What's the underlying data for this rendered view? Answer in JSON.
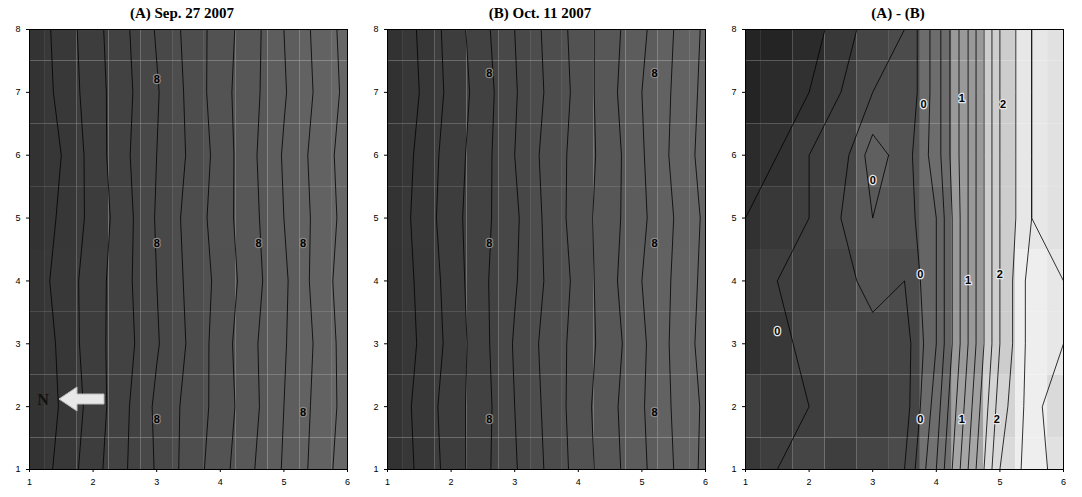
{
  "chart_data": [
    {
      "type": "contour",
      "title": "(A) Sep. 27 2007",
      "x": [
        1,
        1.5,
        2,
        2.5,
        3,
        3.5,
        4,
        4.5,
        5,
        5.5,
        6
      ],
      "y": [
        1,
        2,
        3,
        4,
        5,
        6,
        7,
        8
      ],
      "z": [
        [
          7.42,
          7.53,
          7.66,
          7.79,
          7.91,
          8.04,
          8.16,
          8.29,
          8.41,
          8.53,
          8.66
        ],
        [
          7.4,
          7.51,
          7.64,
          7.78,
          7.92,
          8.03,
          8.14,
          8.27,
          8.4,
          8.52,
          8.64
        ],
        [
          7.41,
          7.52,
          7.66,
          7.76,
          7.89,
          8.01,
          8.15,
          8.28,
          8.39,
          8.51,
          8.65
        ],
        [
          7.43,
          7.54,
          7.65,
          7.77,
          7.9,
          8.02,
          8.13,
          8.26,
          8.38,
          8.53,
          8.66
        ],
        [
          7.4,
          7.52,
          7.63,
          7.76,
          7.91,
          8.03,
          8.15,
          8.27,
          8.4,
          8.52,
          8.64
        ],
        [
          7.39,
          7.5,
          7.64,
          7.78,
          7.9,
          8.01,
          8.14,
          8.28,
          8.41,
          8.53,
          8.65
        ],
        [
          7.41,
          7.53,
          7.65,
          7.77,
          7.89,
          8.02,
          8.16,
          8.27,
          8.39,
          8.51,
          8.63
        ],
        [
          7.42,
          7.54,
          7.66,
          7.78,
          7.91,
          8.03,
          8.15,
          8.26,
          8.4,
          8.52,
          8.64
        ]
      ],
      "levels": [
        7.5,
        7.6,
        7.7,
        7.8,
        7.9,
        8.0,
        8.1,
        8.2,
        8.3,
        8.4,
        8.5,
        8.6
      ],
      "zlim": [
        7.3,
        8.8
      ],
      "xlim": [
        1,
        6
      ],
      "ylim": [
        1,
        8
      ],
      "xticks": [
        1,
        2,
        3,
        4,
        5,
        6
      ],
      "yticks": [
        1,
        2,
        3,
        4,
        5,
        6,
        7,
        8
      ],
      "contour_labels": [
        {
          "x": 3.0,
          "y": 7.2,
          "value": 8
        },
        {
          "x": 3.0,
          "y": 4.6,
          "value": 8
        },
        {
          "x": 4.6,
          "y": 4.6,
          "value": 8
        },
        {
          "x": 5.3,
          "y": 4.6,
          "value": 8
        },
        {
          "x": 3.0,
          "y": 1.8,
          "value": 8
        },
        {
          "x": 5.3,
          "y": 1.9,
          "value": 8
        }
      ],
      "annotations": [
        {
          "text": "N"
        }
      ]
    },
    {
      "type": "contour",
      "title": "(B) Oct. 11 2007",
      "x": [
        1,
        1.5,
        2,
        2.5,
        3,
        3.5,
        4,
        4.5,
        5,
        5.5,
        6
      ],
      "y": [
        1,
        2,
        3,
        4,
        5,
        6,
        7,
        8
      ],
      "z": [
        [
          7.4,
          7.52,
          7.64,
          7.77,
          7.89,
          8.01,
          8.14,
          8.26,
          8.38,
          8.5,
          8.63
        ],
        [
          7.41,
          7.53,
          7.65,
          7.76,
          7.9,
          8.02,
          8.15,
          8.27,
          8.39,
          8.51,
          8.62
        ],
        [
          7.39,
          7.51,
          7.63,
          7.77,
          7.91,
          8.03,
          8.14,
          8.25,
          8.38,
          8.52,
          8.64
        ],
        [
          7.4,
          7.52,
          7.64,
          7.78,
          7.89,
          8.01,
          8.13,
          8.27,
          8.4,
          8.51,
          8.63
        ],
        [
          7.42,
          7.53,
          7.66,
          7.77,
          7.88,
          8.02,
          8.15,
          8.26,
          8.38,
          8.5,
          8.62
        ],
        [
          7.41,
          7.52,
          7.65,
          7.76,
          7.9,
          8.03,
          8.14,
          8.25,
          8.39,
          8.52,
          8.64
        ],
        [
          7.38,
          7.5,
          7.63,
          7.75,
          7.89,
          8.01,
          8.13,
          8.27,
          8.4,
          8.51,
          8.63
        ],
        [
          7.4,
          7.51,
          7.64,
          7.77,
          7.9,
          8.02,
          8.14,
          8.26,
          8.38,
          8.5,
          8.62
        ]
      ],
      "levels": [
        7.5,
        7.6,
        7.7,
        7.8,
        7.9,
        8.0,
        8.1,
        8.2,
        8.3,
        8.4,
        8.5,
        8.6
      ],
      "zlim": [
        7.3,
        8.8
      ],
      "xlim": [
        1,
        6
      ],
      "ylim": [
        1,
        8
      ],
      "xticks": [
        1,
        2,
        3,
        4,
        5,
        6
      ],
      "yticks": [
        1,
        2,
        3,
        4,
        5,
        6,
        7,
        8
      ],
      "contour_labels": [
        {
          "x": 2.6,
          "y": 7.3,
          "value": 8
        },
        {
          "x": 5.2,
          "y": 7.3,
          "value": 8
        },
        {
          "x": 2.6,
          "y": 4.6,
          "value": 8
        },
        {
          "x": 5.2,
          "y": 4.6,
          "value": 8
        },
        {
          "x": 2.6,
          "y": 1.8,
          "value": 8
        },
        {
          "x": 5.2,
          "y": 1.9,
          "value": 8
        }
      ]
    },
    {
      "type": "contour",
      "title": "(A) - (B)",
      "x": [
        1,
        1.5,
        2,
        2.5,
        3,
        3.5,
        4,
        4.5,
        5,
        5.5,
        6
      ],
      "y": [
        1,
        2,
        3,
        4,
        5,
        6,
        7,
        8
      ],
      "z": [
        [
          -0.3,
          -0.2,
          -0.1,
          -0.2,
          -0.1,
          0.0,
          0.6,
          1.4,
          2.2,
          2.5,
          2.3
        ],
        [
          -0.2,
          -0.3,
          -0.2,
          -0.1,
          -0.2,
          -0.1,
          0.5,
          1.3,
          2.1,
          2.5,
          2.2
        ],
        [
          -0.4,
          -0.3,
          -0.1,
          0.0,
          -0.1,
          -0.1,
          0.4,
          1.2,
          2.0,
          2.5,
          2.4
        ],
        [
          -0.3,
          -0.2,
          -0.2,
          -0.1,
          0.1,
          0.0,
          0.4,
          1.2,
          2.0,
          2.5,
          2.4
        ],
        [
          -0.4,
          -0.3,
          -0.2,
          0.0,
          0.2,
          0.1,
          0.4,
          1.2,
          2.0,
          2.4,
          2.3
        ],
        [
          -0.5,
          -0.4,
          -0.2,
          -0.1,
          0.3,
          0.1,
          0.5,
          1.2,
          2.0,
          2.4,
          2.3
        ],
        [
          -0.6,
          -0.5,
          -0.4,
          -0.2,
          0.0,
          0.0,
          0.5,
          1.2,
          2.0,
          2.4,
          2.3
        ],
        [
          -0.6,
          -0.6,
          -0.5,
          -0.3,
          -0.1,
          0.0,
          0.5,
          1.2,
          2.0,
          2.4,
          2.3
        ]
      ],
      "levels": [
        -0.4,
        -0.2,
        0,
        0.2,
        0.4,
        0.6,
        0.8,
        1.0,
        1.2,
        1.4,
        1.6,
        1.8,
        2.0,
        2.2,
        2.4
      ],
      "zlim": [
        -0.7,
        2.6
      ],
      "xlim": [
        1,
        6
      ],
      "ylim": [
        1,
        8
      ],
      "xticks": [
        1,
        2,
        3,
        4,
        5,
        6
      ],
      "yticks": [
        1,
        2,
        3,
        4,
        5,
        6,
        7,
        8
      ],
      "contour_labels": [
        {
          "x": 3.8,
          "y": 6.8,
          "value": 0
        },
        {
          "x": 3.0,
          "y": 5.6,
          "value": 0
        },
        {
          "x": 3.75,
          "y": 4.1,
          "value": 0
        },
        {
          "x": 3.75,
          "y": 1.8,
          "value": 0
        },
        {
          "x": 1.5,
          "y": 3.2,
          "value": 0
        },
        {
          "x": 4.4,
          "y": 6.9,
          "value": 1
        },
        {
          "x": 4.5,
          "y": 4.0,
          "value": 1
        },
        {
          "x": 4.4,
          "y": 1.8,
          "value": 1
        },
        {
          "x": 5.05,
          "y": 6.8,
          "value": 2
        },
        {
          "x": 5.0,
          "y": 4.1,
          "value": 2
        },
        {
          "x": 4.95,
          "y": 1.8,
          "value": 2
        }
      ]
    }
  ]
}
